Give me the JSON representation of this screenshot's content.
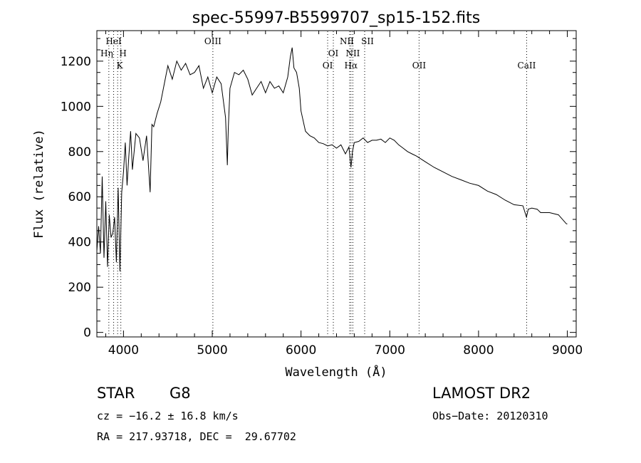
{
  "chart_data": {
    "type": "line",
    "title": "spec-55997-B5599707_sp15-152.fits",
    "xlabel": "Wavelength (Å)",
    "ylabel": "Flux (relative)",
    "xlim": [
      3700,
      9100
    ],
    "ylim": [
      -20,
      1335
    ],
    "xticks": [
      4000,
      5000,
      6000,
      7000,
      8000,
      9000
    ],
    "yticks": [
      0,
      200,
      400,
      600,
      800,
      1000,
      1200
    ],
    "grid": false,
    "series": [
      {
        "x": [
          3700,
          3720,
          3740,
          3760,
          3780,
          3800,
          3820,
          3840,
          3860,
          3880,
          3900,
          3920,
          3940,
          3960,
          3980,
          4000,
          4020,
          4040,
          4060,
          4080,
          4100,
          4140,
          4180,
          4220,
          4260,
          4300,
          4320,
          4340,
          4380,
          4420,
          4460,
          4500,
          4550,
          4600,
          4650,
          4700,
          4750,
          4800,
          4850,
          4900,
          4950,
          5000,
          5050,
          5100,
          5150,
          5170,
          5180,
          5200,
          5250,
          5300,
          5350,
          5400,
          5450,
          5500,
          5550,
          5600,
          5650,
          5700,
          5750,
          5800,
          5850,
          5880,
          5900,
          5920,
          5950,
          5980,
          6000,
          6050,
          6100,
          6150,
          6200,
          6250,
          6300,
          6350,
          6400,
          6450,
          6500,
          6540,
          6563,
          6580,
          6600,
          6650,
          6700,
          6750,
          6800,
          6850,
          6900,
          6950,
          7000,
          7050,
          7100,
          7150,
          7200,
          7250,
          7300,
          7400,
          7500,
          7600,
          7700,
          7800,
          7900,
          8000,
          8100,
          8200,
          8300,
          8400,
          8500,
          8540,
          8560,
          8600,
          8660,
          8700,
          8800,
          8900,
          8990,
          9000
        ],
        "values": [
          360,
          470,
          350,
          690,
          330,
          580,
          290,
          520,
          420,
          440,
          510,
          310,
          640,
          270,
          620,
          710,
          840,
          650,
          780,
          890,
          720,
          880,
          860,
          760,
          870,
          620,
          920,
          910,
          970,
          1020,
          1100,
          1180,
          1120,
          1200,
          1160,
          1190,
          1140,
          1150,
          1180,
          1080,
          1130,
          1060,
          1130,
          1100,
          950,
          740,
          900,
          1080,
          1150,
          1140,
          1160,
          1120,
          1050,
          1080,
          1110,
          1060,
          1110,
          1080,
          1090,
          1060,
          1130,
          1220,
          1260,
          1170,
          1150,
          1080,
          980,
          890,
          870,
          860,
          840,
          835,
          825,
          830,
          815,
          830,
          790,
          820,
          730,
          800,
          840,
          845,
          860,
          840,
          850,
          850,
          855,
          840,
          860,
          850,
          830,
          815,
          800,
          790,
          780,
          755,
          730,
          710,
          690,
          675,
          660,
          650,
          625,
          610,
          585,
          565,
          560,
          510,
          545,
          550,
          545,
          530,
          530,
          520,
          480,
          480
        ],
        "color": "#000000"
      }
    ],
    "emission_lines": [
      {
        "label": "HeI",
        "x": 3889
      },
      {
        "label": "Hη",
        "x": 3835
      },
      {
        "label": "H",
        "x": 3970
      },
      {
        "label": "K",
        "x": 3934
      },
      {
        "label": "OIII",
        "x": 5007
      },
      {
        "label": "OI",
        "x": 6300
      },
      {
        "label": "OI",
        "x": 6364
      },
      {
        "label": "NII",
        "x": 6548
      },
      {
        "label": "NII",
        "x": 6584
      },
      {
        "label": "SII",
        "x": 6717
      },
      {
        "label": "Hα",
        "x": 6563
      },
      {
        "label": "OII",
        "x": 7330
      },
      {
        "label": "CaII",
        "x": 8542
      }
    ]
  },
  "info": {
    "class": "STAR",
    "subclass": "G8",
    "survey": "LAMOST DR2",
    "cz": "cz = −16.2 ± 16.8 km/s",
    "obsdate": "Obs−Date: 20120310",
    "radec": "RA = 217.93718, DEC =  29.67702"
  }
}
